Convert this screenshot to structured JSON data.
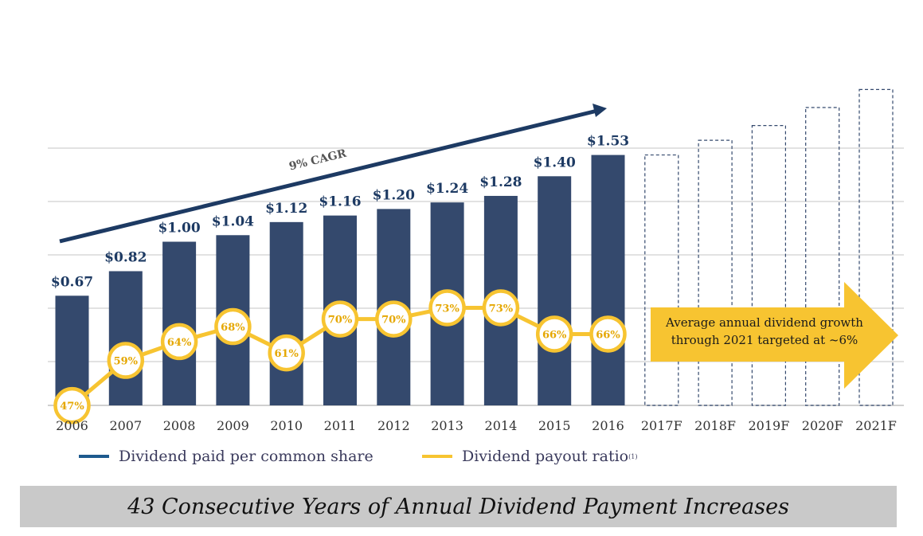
{
  "chart_data": {
    "type": "bar",
    "categories": [
      "2006",
      "2007",
      "2008",
      "2009",
      "2010",
      "2011",
      "2012",
      "2013",
      "2014",
      "2015",
      "2016"
    ],
    "forecast_categories": [
      "2017F",
      "2018F",
      "2019F",
      "2020F",
      "2021F"
    ],
    "series": [
      {
        "name": "Dividend paid per common share",
        "values": [
          0.67,
          0.82,
          1.0,
          1.04,
          1.12,
          1.16,
          1.2,
          1.24,
          1.28,
          1.4,
          1.53
        ],
        "labels": [
          "$0.67",
          "$0.82",
          "$1.00",
          "$1.04",
          "$1.12",
          "$1.16",
          "$1.20",
          "$1.24",
          "$1.28",
          "$1.40",
          "$1.53"
        ],
        "color": "#34496d"
      },
      {
        "name": "Dividend payout ratio",
        "type": "line",
        "values": [
          47,
          59,
          64,
          68,
          61,
          70,
          70,
          73,
          73,
          66,
          66
        ],
        "color": "#f7c431"
      }
    ],
    "forecast_values": [
      1.53,
      1.62,
      1.71,
      1.82,
      1.93
    ],
    "ylim": [
      0,
      2.0
    ],
    "grid": true,
    "annotations": {
      "cagr": "9% CAGR",
      "growth_target": [
        "Average annual dividend growth",
        "through 2021 targeted at ~6%"
      ]
    }
  },
  "legend": {
    "dividend_label": "Dividend paid per common share",
    "payout_label": "Dividend payout ratio",
    "payout_footnote": "(1)",
    "dividend_color": "#1d5a8e",
    "payout_color": "#f7c431"
  },
  "banner": {
    "text": "43 Consecutive Years of Annual Dividend Payment Increases"
  }
}
